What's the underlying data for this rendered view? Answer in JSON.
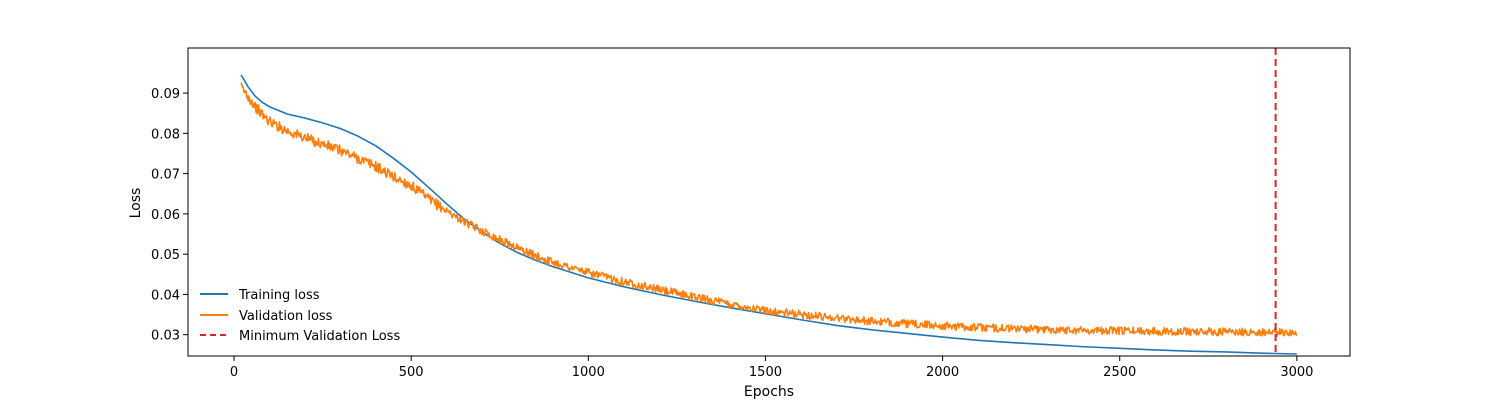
{
  "chart_data": {
    "type": "line",
    "title": "",
    "xlabel": "Epochs",
    "ylabel": "Loss",
    "xlim": [
      -130,
      3150
    ],
    "ylim": [
      0.0247,
      0.1012
    ],
    "xticks": [
      0,
      500,
      1000,
      1500,
      2000,
      2500,
      3000
    ],
    "xtick_labels": [
      "0",
      "500",
      "1000",
      "1500",
      "2000",
      "2500",
      "3000"
    ],
    "yticks": [
      0.03,
      0.04,
      0.05,
      0.06,
      0.07,
      0.08,
      0.09
    ],
    "ytick_labels": [
      "0.03",
      "0.04",
      "0.05",
      "0.06",
      "0.07",
      "0.08",
      "0.09"
    ],
    "grid": false,
    "legend_position": "lower-left",
    "series": [
      {
        "name": "Training loss",
        "color": "#1f77b4",
        "style": "solid",
        "x": [
          20,
          40,
          60,
          80,
          100,
          150,
          200,
          250,
          300,
          350,
          400,
          450,
          500,
          550,
          600,
          650,
          700,
          750,
          800,
          850,
          900,
          1000,
          1100,
          1200,
          1300,
          1400,
          1500,
          1600,
          1700,
          1800,
          1900,
          2000,
          2100,
          2200,
          2300,
          2400,
          2500,
          2600,
          2700,
          2800,
          2900,
          3000
        ],
        "y": [
          0.0945,
          0.0915,
          0.0892,
          0.0877,
          0.0866,
          0.0848,
          0.0838,
          0.0826,
          0.0812,
          0.0793,
          0.0769,
          0.0738,
          0.0704,
          0.0665,
          0.0625,
          0.0587,
          0.0555,
          0.0527,
          0.0504,
          0.0485,
          0.0469,
          0.0441,
          0.0419,
          0.04,
          0.0383,
          0.0367,
          0.0352,
          0.0337,
          0.0323,
          0.0312,
          0.0303,
          0.0294,
          0.0286,
          0.028,
          0.0275,
          0.027,
          0.0266,
          0.0262,
          0.0259,
          0.0257,
          0.0254,
          0.0252
        ]
      },
      {
        "name": "Validation loss",
        "color": "#ff7f0e",
        "style": "solid",
        "x": [
          20,
          40,
          60,
          80,
          100,
          150,
          200,
          250,
          300,
          350,
          400,
          450,
          500,
          550,
          600,
          650,
          700,
          750,
          800,
          850,
          900,
          1000,
          1100,
          1200,
          1300,
          1400,
          1500,
          1600,
          1700,
          1800,
          1900,
          2000,
          2100,
          2200,
          2300,
          2400,
          2500,
          2600,
          2700,
          2800,
          2900,
          3000
        ],
        "y": [
          0.0915,
          0.0892,
          0.0866,
          0.0846,
          0.083,
          0.0806,
          0.0789,
          0.0773,
          0.0758,
          0.0738,
          0.0718,
          0.0692,
          0.067,
          0.0636,
          0.0608,
          0.058,
          0.0558,
          0.0536,
          0.0516,
          0.0496,
          0.048,
          0.0454,
          0.0432,
          0.0412,
          0.0394,
          0.0376,
          0.036,
          0.035,
          0.0342,
          0.0333,
          0.0327,
          0.0322,
          0.0318,
          0.0315,
          0.0313,
          0.0311,
          0.031,
          0.0309,
          0.0308,
          0.0307,
          0.0306,
          0.0305
        ],
        "noise_amplitude": 0.0013
      }
    ],
    "vlines": [
      {
        "name": "Minimum Validation Loss",
        "x": 2940,
        "color": "#d62728",
        "style": "dashed"
      }
    ]
  }
}
